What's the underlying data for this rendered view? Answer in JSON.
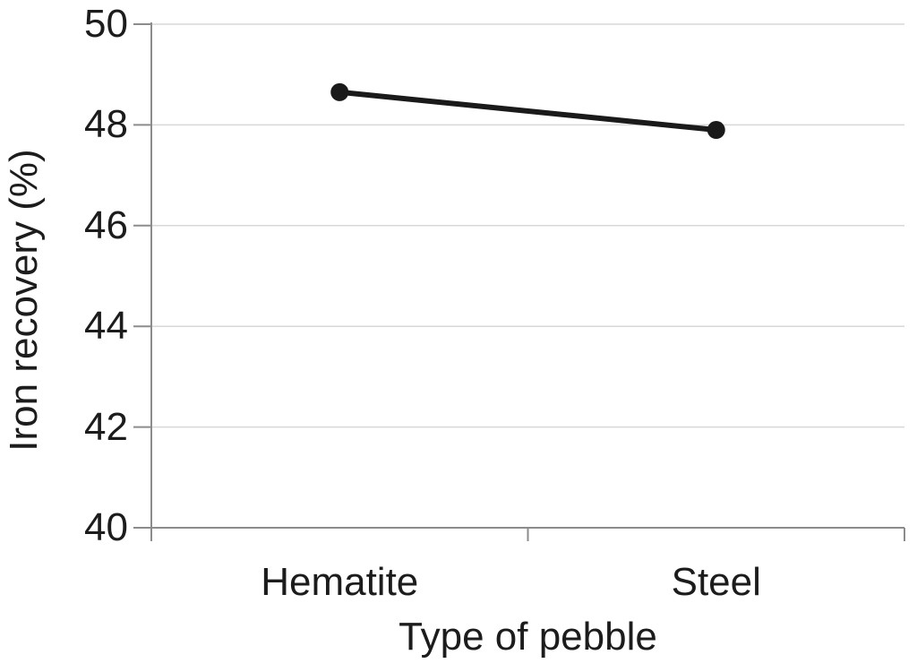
{
  "chart_data": {
    "type": "line",
    "title": "",
    "xlabel": "Type of pebble",
    "ylabel": "Iron recovery (%)",
    "categories": [
      "Hematite",
      "Steel"
    ],
    "series": [
      {
        "name": "Iron recovery",
        "values": [
          48.65,
          47.9
        ]
      }
    ],
    "ylim": [
      40,
      50
    ],
    "ytick_step": 2,
    "ytick_labels": [
      "50",
      "48",
      "46",
      "44",
      "42",
      "40"
    ],
    "grid": "horizontal",
    "legend_position": "none",
    "marker": "circle",
    "colors": {
      "line": "#1a1a1a",
      "marker": "#1a1a1a",
      "axis": "#8c8c8c",
      "gridline": "#d7d7d7",
      "text": "#1c1c1c",
      "background": "#ffffff"
    }
  }
}
